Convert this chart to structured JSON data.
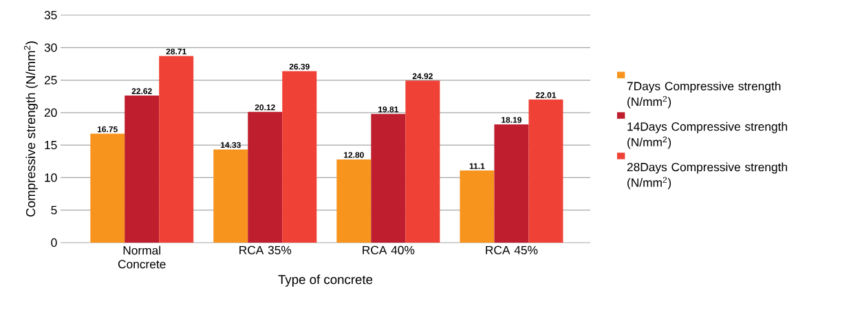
{
  "chart_data": {
    "type": "bar",
    "xlabel": "Type of concrete",
    "ylabel": "Compressive strength (N/mm$^{2}$)",
    "categories": [
      "Normal Concrete",
      "RCA 35%",
      "RCA 40%",
      "RCA 45%"
    ],
    "series": [
      {
        "name": "7Days Compressive strength (N/mm$^{2}$)",
        "color": "#f7941d",
        "values": [
          16.75,
          14.33,
          12.8,
          11.1
        ],
        "value_labels": [
          "16.75",
          "14.33",
          "12.80",
          "11.1"
        ]
      },
      {
        "name": "14Days Compressive strength (N/mm$^{2}$)",
        "color": "#be1e2d",
        "values": [
          22.62,
          20.12,
          19.81,
          18.19
        ],
        "value_labels": [
          "22.62",
          "20.12",
          "19.81",
          "18.19"
        ]
      },
      {
        "name": "28Days Compressive strength (N/mm$^{2}$)",
        "color": "#ef4136",
        "values": [
          28.71,
          26.39,
          24.92,
          22.01
        ],
        "value_labels": [
          "28.71",
          "26.39",
          "24.92",
          "22.01"
        ]
      }
    ],
    "ylim": [
      0,
      35
    ],
    "yticks": [
      0,
      5,
      10,
      15,
      20,
      25,
      30,
      35
    ],
    "grid": "y",
    "legend": "right"
  }
}
